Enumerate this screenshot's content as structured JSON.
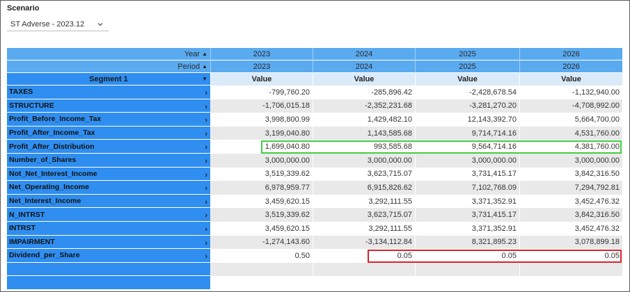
{
  "scenario": {
    "label": "Scenario",
    "selected": "ST Adverse - 2023.12"
  },
  "table": {
    "year_header_label": "Year",
    "period_header_label": "Period",
    "segment_header_label": "Segment 1",
    "value_header_label": "Value",
    "years": [
      "2023",
      "2024",
      "2025",
      "2026"
    ],
    "periods": [
      "2023",
      "2024",
      "2025",
      "2026"
    ],
    "rows": [
      {
        "label": "TAXES",
        "values": [
          "-799,760.20",
          "-285,896.42",
          "-2,428,678.54",
          "-1,132,940.00"
        ]
      },
      {
        "label": "STRUCTURE",
        "values": [
          "-1,706,015.18",
          "-2,352,231.68",
          "-3,281,270.20",
          "-4,708,992.00"
        ]
      },
      {
        "label": "Profit_Before_Income_Tax",
        "values": [
          "3,998,800.99",
          "1,429,482.10",
          "12,143,392.70",
          "5,664,700.00"
        ]
      },
      {
        "label": "Profit_After_Income_Tax",
        "values": [
          "3,199,040.80",
          "1,143,585.68",
          "9,714,714.16",
          "4,531,760.00"
        ]
      },
      {
        "label": "Profit_After_Distribution",
        "values": [
          "1,699,040.80",
          "993,585.68",
          "9,564,714.16",
          "4,381,760.00"
        ]
      },
      {
        "label": "Number_of_Shares",
        "values": [
          "3,000,000.00",
          "3,000,000.00",
          "3,000,000.00",
          "3,000,000.00"
        ]
      },
      {
        "label": "Not_Net_Interest_Income",
        "values": [
          "3,519,339.62",
          "3,623,715.07",
          "3,731,415.17",
          "3,842,316.50"
        ]
      },
      {
        "label": "Net_Operating_Income",
        "values": [
          "6,978,959.77",
          "6,915,826.62",
          "7,102,768.09",
          "7,294,792.81"
        ]
      },
      {
        "label": "Net_Interest_Income",
        "values": [
          "3,459,620.15",
          "3,292,111.55",
          "3,371,352.91",
          "3,452,476.32"
        ]
      },
      {
        "label": "N_INTRST",
        "values": [
          "3,519,339.62",
          "3,623,715.07",
          "3,731,415.17",
          "3,842,316.50"
        ]
      },
      {
        "label": "INTRST",
        "values": [
          "3,459,620.15",
          "3,292,111.55",
          "3,371,352.91",
          "3,452,476.32"
        ]
      },
      {
        "label": "IMPAIRMENT",
        "values": [
          "-1,274,143.60",
          "-3,134,112.84",
          "8,321,895.23",
          "3,078,899.18"
        ]
      },
      {
        "label": "Dividend_per_Share",
        "values": [
          "0.50",
          "0.05",
          "0.05",
          "0.05"
        ]
      }
    ]
  },
  "colors": {
    "header_blue": "#5aaaf0",
    "segment_blue": "#2f8ef0",
    "highlight_green": "#3ecf3e",
    "highlight_red": "#d9232e"
  }
}
